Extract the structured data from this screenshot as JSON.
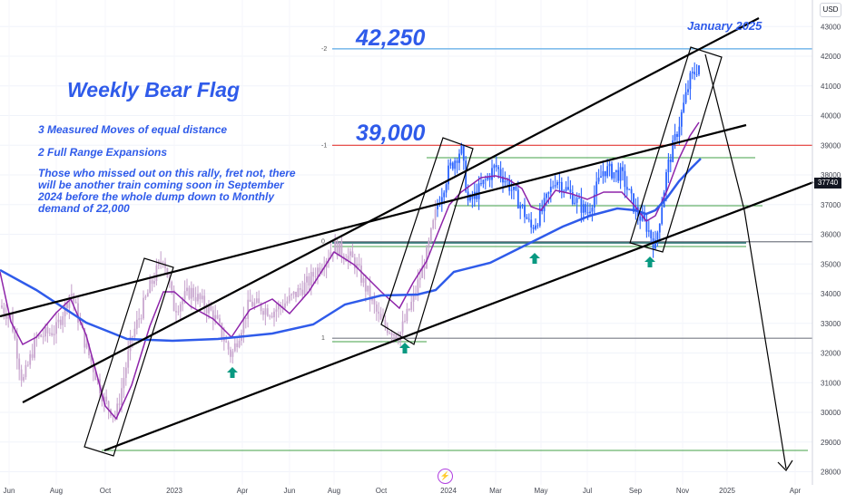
{
  "header": {
    "currency": "USD",
    "last_price_tag": "37740"
  },
  "annotations": {
    "title": "Weekly Bear Flag",
    "note1": "3 Measured Moves of equal distance",
    "note2": "2 Full Range Expansions",
    "note3": "Those who missed out on this rally, fret not, there will be another train coming soon in September 2024 before the whole dump down to Monthly demand of 22,000",
    "level_42250": "42,250",
    "level_39000": "39,000",
    "month_label": "January 2025"
  },
  "fib_levels": [
    {
      "label": "-2",
      "price": 42250,
      "color": "#5aa9e6"
    },
    {
      "label": "-1",
      "price": 39000,
      "color": "#e53935"
    },
    {
      "label": "0",
      "price": 35750,
      "color": "#787b86"
    },
    {
      "label": "1",
      "price": 32500,
      "color": "#787b86"
    }
  ],
  "colors": {
    "candles_old": "#c9a7cf",
    "candles_recent": "#2962ff",
    "ma_fast": "#8e24aa",
    "ma_slow": "#2f5bea",
    "channel": "#000000",
    "support": "#43a047",
    "arrows": "#089981"
  },
  "chart_data": {
    "type": "line",
    "title": "",
    "xlabel": "",
    "ylabel": "",
    "y_axis": {
      "ticks": [
        43000,
        42000,
        41000,
        40000,
        39000,
        38000,
        37000,
        36000,
        35000,
        34000,
        33000,
        32000,
        31000,
        30000,
        29000,
        28000
      ],
      "ylim": [
        27800,
        43200
      ]
    },
    "x_axis": {
      "ticks": [
        "Jun",
        "Aug",
        "Oct",
        "2023",
        "Apr",
        "Jun",
        "Aug",
        "Oct",
        "2024",
        "Mar",
        "May",
        "Jul",
        "Sep",
        "Nov",
        "2025",
        "Apr"
      ]
    },
    "series": [
      {
        "points": [
          [
            "Jun",
            33200
          ],
          [
            "Aug",
            32600
          ],
          [
            "Oct",
            30000
          ],
          [
            "2023",
            33400
          ],
          [
            "Apr",
            32600
          ],
          [
            "Jun",
            33800
          ],
          [
            "Aug",
            35500
          ],
          [
            "Oct",
            33000
          ],
          [
            "2024",
            38000
          ],
          [
            "Mar",
            38600
          ],
          [
            "May",
            37800
          ],
          [
            "Jul",
            38400
          ],
          [
            "Sep",
            35600
          ],
          [
            "Nov",
            41600
          ]
        ]
      }
    ]
  }
}
